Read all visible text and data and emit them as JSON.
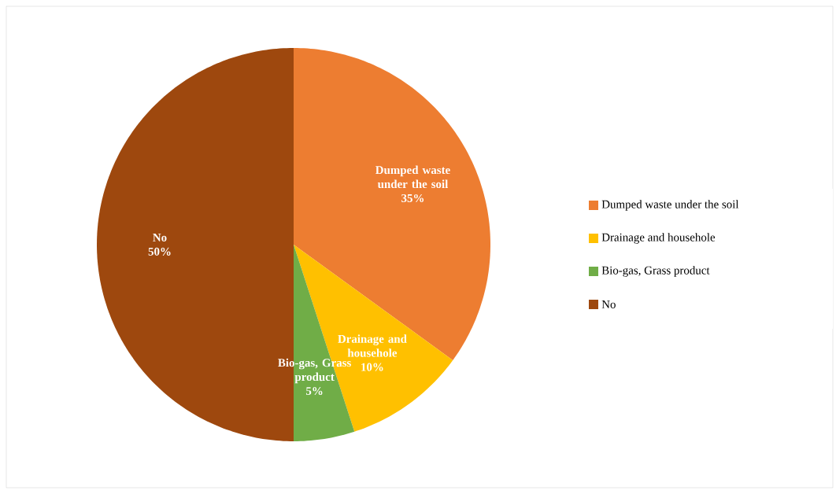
{
  "chart_data": {
    "type": "pie",
    "categories": [
      "Dumped waste under the soil",
      "Drainage and househole",
      "Bio-gas, Grass product",
      "No"
    ],
    "values": [
      35,
      10,
      5,
      50
    ],
    "value_labels": [
      "35%",
      "10%",
      "5%",
      "50%"
    ],
    "colors": [
      "#ed7d31",
      "#ffc000",
      "#70ad47",
      "#9e480e"
    ],
    "legend": "right"
  }
}
